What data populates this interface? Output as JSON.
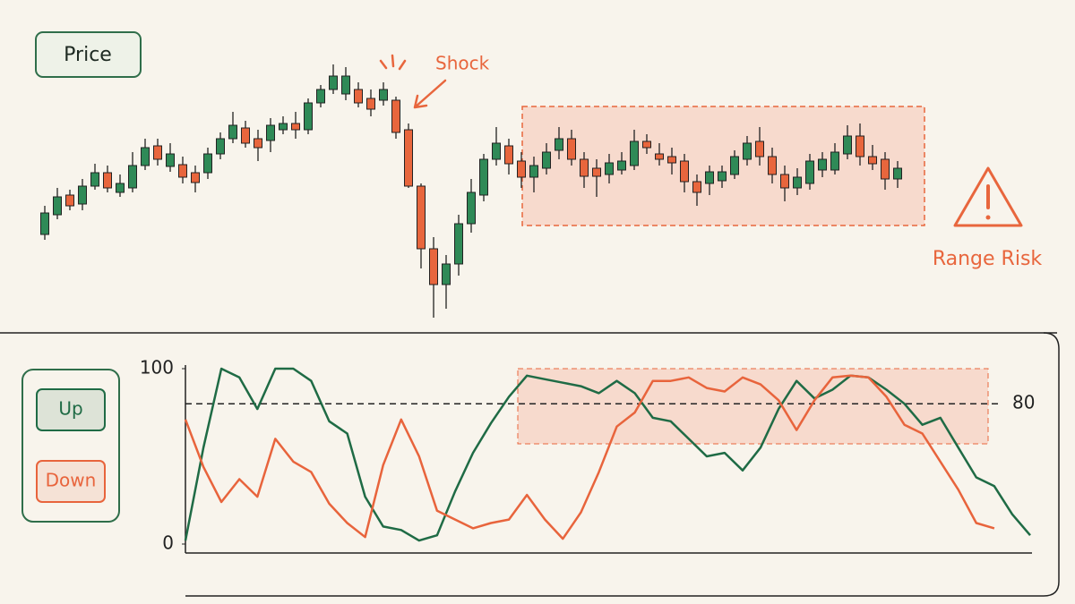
{
  "chart_data": [
    {
      "type": "candlestick",
      "title": "Price",
      "annotations": [
        "Shock",
        "Range Risk"
      ],
      "open": [
        138,
        160,
        182,
        172,
        192,
        207,
        185,
        190,
        215,
        237,
        214,
        216,
        207,
        207,
        228,
        245,
        257,
        245,
        243,
        255,
        262,
        255,
        285,
        300,
        295,
        300,
        290,
        288,
        288,
        255,
        192,
        122,
        82,
        105,
        150,
        182,
        222,
        237,
        220,
        202,
        212,
        232,
        245,
        222,
        212,
        205,
        210,
        215,
        242,
        228,
        225,
        220,
        197,
        195,
        198,
        205,
        222,
        242,
        225,
        205,
        190,
        195,
        210,
        210,
        228,
        248,
        225,
        222,
        200
      ],
      "high": [
        170,
        190,
        188,
        200,
        217,
        215,
        205,
        230,
        245,
        245,
        240,
        225,
        215,
        235,
        252,
        275,
        265,
        255,
        268,
        270,
        275,
        290,
        305,
        328,
        325,
        308,
        300,
        308,
        292,
        262,
        195,
        135,
        115,
        160,
        200,
        228,
        258,
        245,
        230,
        225,
        240,
        258,
        255,
        230,
        222,
        228,
        230,
        255,
        250,
        240,
        235,
        228,
        205,
        215,
        215,
        232,
        248,
        258,
        235,
        215,
        212,
        228,
        230,
        240,
        260,
        262,
        238,
        230,
        220
      ],
      "low": [
        132,
        155,
        165,
        165,
        188,
        185,
        180,
        185,
        210,
        215,
        208,
        195,
        185,
        200,
        222,
        240,
        235,
        220,
        230,
        250,
        245,
        250,
        280,
        295,
        288,
        280,
        270,
        282,
        245,
        190,
        100,
        45,
        55,
        92,
        140,
        175,
        215,
        205,
        190,
        185,
        205,
        222,
        215,
        190,
        180,
        195,
        205,
        210,
        228,
        215,
        205,
        185,
        170,
        182,
        190,
        200,
        215,
        215,
        195,
        175,
        182,
        188,
        202,
        205,
        222,
        215,
        210,
        188,
        190
      ],
      "close": [
        162,
        180,
        170,
        192,
        207,
        190,
        195,
        215,
        235,
        222,
        228,
        202,
        196,
        228,
        245,
        260,
        240,
        235,
        260,
        262,
        255,
        285,
        300,
        315,
        315,
        285,
        278,
        300,
        252,
        192,
        122,
        82,
        105,
        150,
        185,
        222,
        240,
        217,
        202,
        215,
        230,
        245,
        222,
        203,
        203,
        218,
        220,
        242,
        235,
        222,
        218,
        197,
        185,
        208,
        208,
        225,
        240,
        225,
        205,
        190,
        202,
        220,
        222,
        230,
        248,
        225,
        217,
        200,
        212
      ],
      "ylim": [
        40,
        340
      ],
      "up_color": "#2f8a57",
      "down_color": "#e8663d"
    },
    {
      "type": "line",
      "series": [
        {
          "name": "Up",
          "color": "#1f6b45",
          "values": [
            2,
            55,
            100,
            95,
            77,
            100,
            100,
            93,
            70,
            63,
            27,
            10,
            8,
            2,
            5,
            30,
            52,
            69,
            84,
            96,
            94,
            92,
            90,
            86,
            93,
            86,
            72,
            70,
            60,
            50,
            52,
            42,
            55,
            77,
            93,
            83,
            88,
            96,
            95,
            88,
            80,
            68,
            72,
            55,
            38,
            33,
            17,
            5
          ]
        },
        {
          "name": "Down",
          "color": "#e8643c",
          "values": [
            71,
            44,
            24,
            37,
            27,
            60,
            47,
            41,
            23,
            12,
            4,
            45,
            71,
            50,
            19,
            14,
            9,
            12,
            14,
            28,
            14,
            3,
            18,
            41,
            67,
            75,
            93,
            93,
            95,
            89,
            87,
            95,
            91,
            82,
            65,
            82,
            95,
            96,
            95,
            84,
            68,
            63,
            47,
            31,
            12,
            9,
            null,
            null
          ]
        }
      ],
      "ylim": [
        0,
        100
      ],
      "yticks": [
        0,
        100
      ],
      "hline": 80
    }
  ]
}
